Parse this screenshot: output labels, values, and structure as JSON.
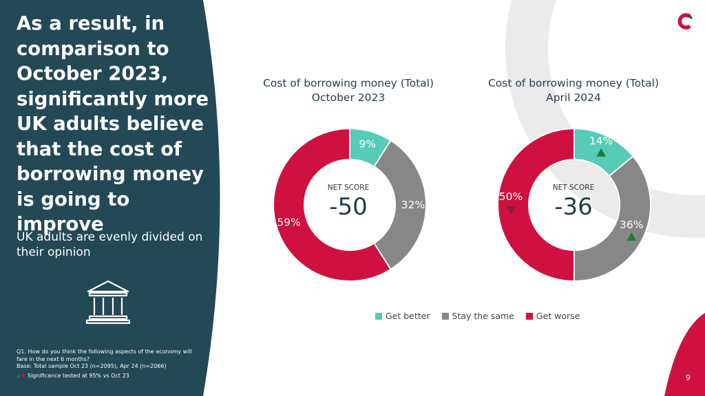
{
  "headline": "As a result, in comparison to October 2023, significantly more UK adults believe that the cost of borrowing money is going to improve",
  "subline": "UK adults are evenly divided on their opinion",
  "notes": {
    "question": "Q1. How do you think the following aspects of the economy will fare in the next 6 months?",
    "base": "Base: Total sample Oct 23 (n=2095), Apr 24 (n=2066)",
    "significance": "Significance tested at 95% vs Oct 23"
  },
  "icons": {
    "bank": "bank-building-icon",
    "logo": "c-logo-icon",
    "up": "triangle-up-icon",
    "down": "triangle-down-icon"
  },
  "colors": {
    "panel": "#234856",
    "get_better": "#55cbb8",
    "stay_same": "#878787",
    "get_worse": "#cf1140",
    "sig_up": "#1e7a34",
    "sig_down": "#8e1e33",
    "swoosh": "#ebebeb"
  },
  "page_number": "9",
  "chart_data": [
    {
      "type": "pie",
      "title_line1": "Cost of borrowing money (Total)",
      "title_line2": "October 2023",
      "categories": [
        "Get better",
        "Stay the same",
        "Get worse"
      ],
      "values": [
        9,
        32,
        59
      ],
      "labels": [
        "9%",
        "32%",
        "59%"
      ],
      "significance": [
        "",
        "",
        ""
      ],
      "net_score_label": "NET SCORE",
      "net_score": "-50"
    },
    {
      "type": "pie",
      "title_line1": "Cost of borrowing money (Total)",
      "title_line2": "April 2024",
      "categories": [
        "Get better",
        "Stay the same",
        "Get worse"
      ],
      "values": [
        14,
        36,
        50
      ],
      "labels": [
        "14%",
        "36%",
        "50%"
      ],
      "significance": [
        "up",
        "up",
        "down"
      ],
      "net_score_label": "NET SCORE",
      "net_score": "-36"
    }
  ],
  "legend": [
    {
      "label": "Get better",
      "color": "#55cbb8"
    },
    {
      "label": "Stay the same",
      "color": "#878787"
    },
    {
      "label": "Get worse",
      "color": "#cf1140"
    }
  ]
}
